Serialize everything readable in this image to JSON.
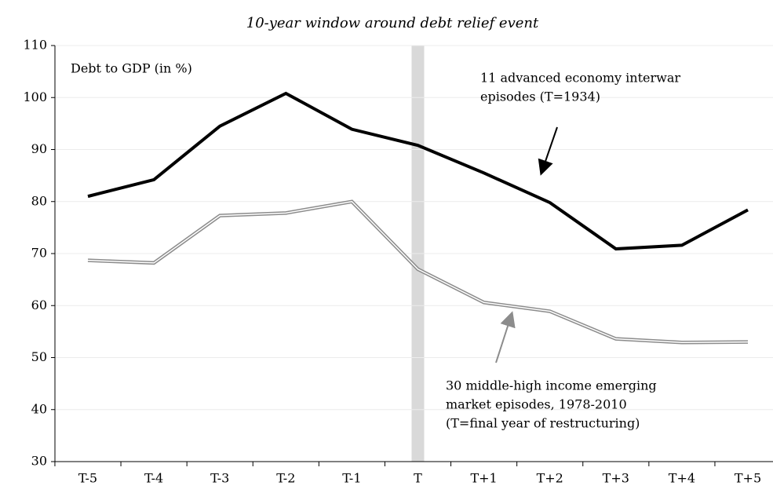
{
  "chart_data": {
    "type": "line",
    "title": "10-year window around debt relief event",
    "ylabel": "Debt to GDP (in %)",
    "categories": [
      "T-5",
      "T-4",
      "T-3",
      "T-2",
      "T-1",
      "T",
      "T+1",
      "T+2",
      "T+3",
      "T+4",
      "T+5"
    ],
    "series": [
      {
        "color": "#000000",
        "style": "solid",
        "values": [
          81,
          84.2,
          94.5,
          100.8,
          93.9,
          90.8,
          85.5,
          79.8,
          70.9,
          71.6,
          78.4
        ]
      },
      {
        "color": "#8c8c8c",
        "style": "double",
        "values": [
          68.7,
          68.2,
          77.3,
          77.8,
          80,
          67,
          60.6,
          58.9,
          53.6,
          52.9,
          53
        ]
      }
    ],
    "annotations": [
      [
        "11 advanced economy interwar",
        "episodes (T=1934)"
      ],
      [
        "30 middle-high income emerging",
        "market episodes, 1978-2010",
        "(T=final year of restructuring)"
      ]
    ],
    "highlight_category": 5,
    "ylim": [
      30,
      110
    ],
    "yticks": [
      30,
      40,
      50,
      60,
      70,
      80,
      90,
      100,
      110
    ],
    "grid": true
  }
}
